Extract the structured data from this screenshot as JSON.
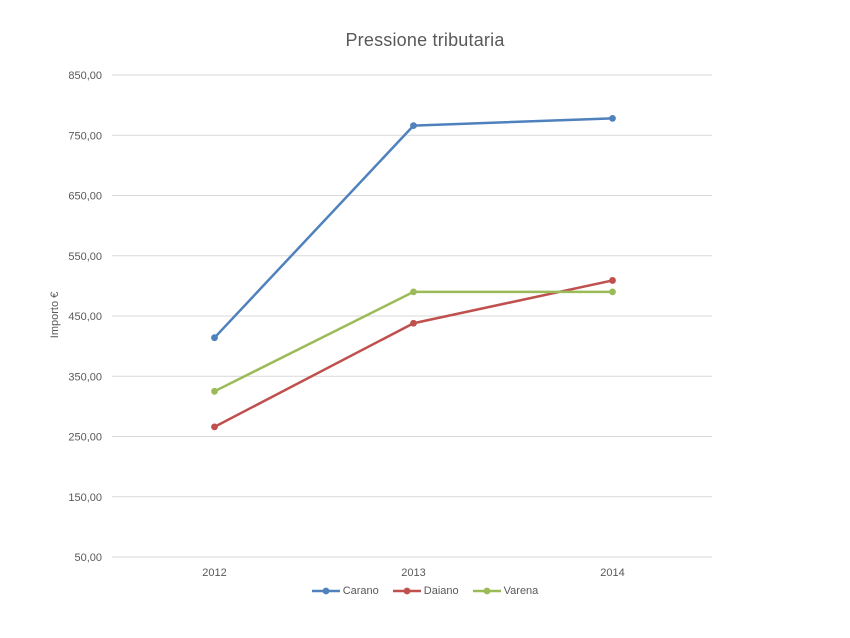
{
  "chart_data": {
    "type": "line",
    "title": "Pressione tributaria",
    "xlabel": "",
    "ylabel": "Importo €",
    "categories": [
      "2012",
      "2013",
      "2014"
    ],
    "series": [
      {
        "name": "Carano",
        "color": "#4F81BD",
        "values": [
          414,
          766,
          778
        ]
      },
      {
        "name": "Daiano",
        "color": "#C0504D",
        "values": [
          266,
          438,
          509
        ]
      },
      {
        "name": "Varena",
        "color": "#9BBB59",
        "values": [
          325,
          490,
          490
        ]
      }
    ],
    "ylim": [
      50,
      850
    ],
    "y_ticks": [
      {
        "value": 850,
        "label": "850,00"
      },
      {
        "value": 750,
        "label": "750,00"
      },
      {
        "value": 650,
        "label": "650,00"
      },
      {
        "value": 550,
        "label": "550,00"
      },
      {
        "value": 450,
        "label": "450,00"
      },
      {
        "value": 350,
        "label": "350,00"
      },
      {
        "value": 250,
        "label": "250,00"
      },
      {
        "value": 150,
        "label": "150,00"
      },
      {
        "value": 50,
        "label": "50,00"
      }
    ],
    "grid": "horizontal",
    "gridline_color": "#D9D9D9",
    "text_color": "#595959",
    "legend_position": "bottom",
    "marker": "circle"
  }
}
